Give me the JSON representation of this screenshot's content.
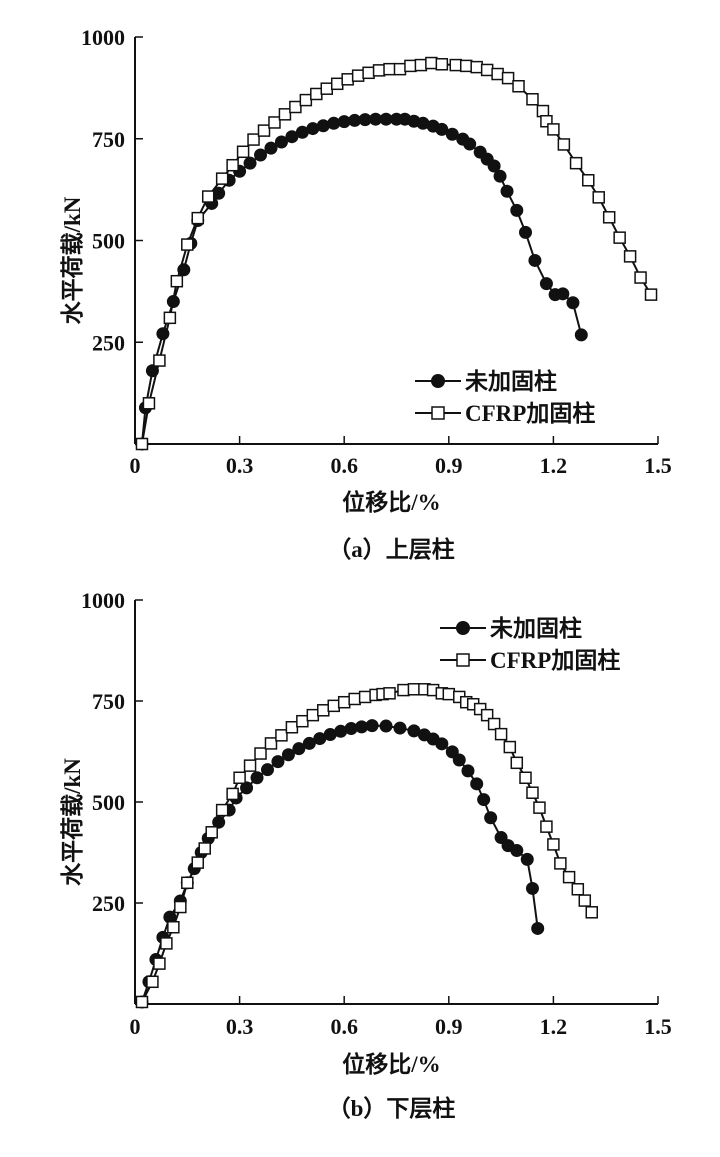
{
  "chart_data": [
    {
      "type": "line",
      "caption": "（a）上层柱",
      "xlabel": "位移比/%",
      "ylabel": "水平荷载/kN",
      "xlim": [
        0,
        1.5
      ],
      "ylim": [
        0,
        1000
      ],
      "xticks": [
        "0",
        "0.3",
        "0.6",
        "0.9",
        "1.2",
        "1.5"
      ],
      "xtick_values": [
        0,
        0.3,
        0.6,
        0.9,
        1.2,
        1.5
      ],
      "yticks": [
        "250",
        "500",
        "750",
        "1000"
      ],
      "ytick_values": [
        250,
        500,
        750,
        1000
      ],
      "grid": false,
      "legend_position": "bottom-right",
      "series": [
        {
          "name": "未加固柱",
          "marker": "filled-circle",
          "x": [
            0.02,
            0.03,
            0.05,
            0.08,
            0.11,
            0.14,
            0.16,
            0.18,
            0.22,
            0.24,
            0.27,
            0.3,
            0.33,
            0.36,
            0.39,
            0.42,
            0.45,
            0.48,
            0.51,
            0.54,
            0.57,
            0.6,
            0.63,
            0.66,
            0.69,
            0.72,
            0.75,
            0.774,
            0.8,
            0.826,
            0.855,
            0.88,
            0.91,
            0.94,
            0.96,
            0.99,
            1.01,
            1.03,
            1.047,
            1.067,
            1.095,
            1.12,
            1.147,
            1.18,
            1.205,
            1.227,
            1.256,
            1.28
          ],
          "y": [
            0,
            89,
            180,
            271,
            350,
            428,
            493,
            549,
            591,
            616,
            648,
            670,
            690,
            710,
            727,
            742,
            755,
            766,
            775,
            782,
            788,
            792,
            795,
            797,
            798,
            798,
            798,
            798,
            793,
            788,
            781,
            773,
            761,
            749,
            737,
            717,
            700,
            683,
            658,
            621,
            574,
            520,
            451,
            394,
            367,
            369,
            347,
            268
          ]
        },
        {
          "name": "CFRP加固柱",
          "marker": "open-square",
          "x": [
            0.02,
            0.04,
            0.07,
            0.1,
            0.12,
            0.15,
            0.18,
            0.21,
            0.25,
            0.28,
            0.31,
            0.34,
            0.37,
            0.4,
            0.43,
            0.46,
            0.49,
            0.52,
            0.55,
            0.58,
            0.61,
            0.64,
            0.67,
            0.7,
            0.73,
            0.76,
            0.79,
            0.82,
            0.85,
            0.88,
            0.92,
            0.95,
            0.98,
            1.01,
            1.04,
            1.07,
            1.1,
            1.14,
            1.17,
            1.18,
            1.2,
            1.23,
            1.265,
            1.3,
            1.33,
            1.36,
            1.39,
            1.42,
            1.45,
            1.48
          ],
          "y": [
            0,
            100,
            205,
            310,
            400,
            490,
            555,
            608,
            652,
            685,
            718,
            748,
            770,
            790,
            810,
            828,
            845,
            860,
            873,
            885,
            896,
            905,
            912,
            918,
            921,
            921,
            929,
            931,
            936,
            933,
            931,
            929,
            926,
            919,
            909,
            899,
            879,
            847,
            818,
            793,
            773,
            736,
            690,
            648,
            606,
            557,
            507,
            461,
            409,
            367
          ]
        }
      ]
    },
    {
      "type": "line",
      "caption": "（b）下层柱",
      "xlabel": "位移比/%",
      "ylabel": "水平荷载/kN",
      "xlim": [
        0,
        1.5
      ],
      "ylim": [
        0,
        1000
      ],
      "xticks": [
        "0",
        "0.3",
        "0.6",
        "0.9",
        "1.2",
        "1.5"
      ],
      "xtick_values": [
        0,
        0.3,
        0.6,
        0.9,
        1.2,
        1.5
      ],
      "yticks": [
        "250",
        "500",
        "750",
        "1000"
      ],
      "ytick_values": [
        250,
        500,
        750,
        1000
      ],
      "grid": false,
      "legend_position": "top-right",
      "series": [
        {
          "name": "未加固柱",
          "marker": "filled-circle",
          "x": [
            0.02,
            0.04,
            0.06,
            0.08,
            0.1,
            0.13,
            0.15,
            0.17,
            0.19,
            0.21,
            0.24,
            0.27,
            0.29,
            0.32,
            0.35,
            0.38,
            0.41,
            0.44,
            0.47,
            0.5,
            0.53,
            0.56,
            0.59,
            0.62,
            0.65,
            0.68,
            0.72,
            0.76,
            0.8,
            0.83,
            0.855,
            0.88,
            0.91,
            0.93,
            0.955,
            0.98,
            1.0,
            1.02,
            1.05,
            1.07,
            1.095,
            1.125,
            1.14,
            1.155
          ],
          "y": [
            5,
            55,
            110,
            165,
            215,
            255,
            300,
            335,
            375,
            410,
            450,
            480,
            510,
            535,
            560,
            580,
            600,
            617,
            632,
            645,
            657,
            667,
            675,
            682,
            686,
            689,
            688,
            683,
            676,
            666,
            656,
            644,
            624,
            604,
            577,
            545,
            506,
            461,
            412,
            392,
            380,
            358,
            286,
            187
          ]
        },
        {
          "name": "CFRP加固柱",
          "marker": "open-square",
          "x": [
            0.02,
            0.05,
            0.07,
            0.09,
            0.11,
            0.13,
            0.15,
            0.18,
            0.2,
            0.22,
            0.25,
            0.28,
            0.3,
            0.33,
            0.36,
            0.39,
            0.42,
            0.45,
            0.48,
            0.51,
            0.54,
            0.57,
            0.6,
            0.63,
            0.66,
            0.69,
            0.71,
            0.73,
            0.77,
            0.8,
            0.83,
            0.855,
            0.88,
            0.9,
            0.93,
            0.95,
            0.97,
            0.99,
            1.01,
            1.03,
            1.05,
            1.075,
            1.095,
            1.12,
            1.14,
            1.16,
            1.18,
            1.2,
            1.22,
            1.245,
            1.27,
            1.29,
            1.31
          ],
          "y": [
            5,
            55,
            100,
            150,
            190,
            240,
            300,
            350,
            385,
            425,
            480,
            520,
            560,
            590,
            620,
            645,
            665,
            685,
            700,
            715,
            727,
            738,
            747,
            755,
            760,
            765,
            767,
            769,
            777,
            779,
            779,
            777,
            769,
            767,
            760,
            747,
            742,
            730,
            715,
            693,
            668,
            636,
            597,
            560,
            523,
            486,
            439,
            395,
            348,
            314,
            284,
            256,
            227
          ]
        }
      ]
    }
  ]
}
